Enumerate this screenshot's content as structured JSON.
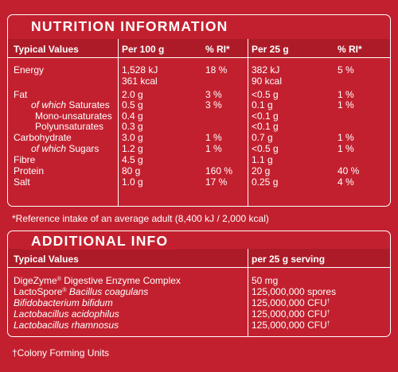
{
  "nutrition": {
    "title": "NUTRITION INFORMATION",
    "headers": [
      "Typical Values",
      "Per 100 g",
      "% RI*",
      "Per 25 g",
      "% RI*"
    ],
    "rows": [
      {
        "label": "Energy",
        "italic_prefix": "",
        "per100": "1,528 kJ",
        "ri100": "18 %",
        "per25": "382 kJ",
        "ri25": "5 %"
      },
      {
        "label": "",
        "italic_prefix": "",
        "per100": "361 kcal",
        "ri100": "",
        "per25": "90 kcal",
        "ri25": ""
      },
      {
        "label": "Fat",
        "italic_prefix": "",
        "per100": "2.0 g",
        "ri100": "3 %",
        "per25": "<0.5 g",
        "ri25": "1 %"
      },
      {
        "label": " Saturates",
        "italic_prefix": "of which",
        "per100": "0.5 g",
        "ri100": "3 %",
        "per25": "0.1 g",
        "ri25": "1 %"
      },
      {
        "label": "Mono-unsaturates",
        "italic_prefix": "",
        "per100": "0.4 g",
        "ri100": "",
        "per25": "<0.1 g",
        "ri25": ""
      },
      {
        "label": "Polyunsaturates",
        "italic_prefix": "",
        "per100": "0.3 g",
        "ri100": "",
        "per25": "<0.1 g",
        "ri25": ""
      },
      {
        "label": "Carbohydrate",
        "italic_prefix": "",
        "per100": "3.0 g",
        "ri100": "1 %",
        "per25": "0.7 g",
        "ri25": "1 %"
      },
      {
        "label": " Sugars",
        "italic_prefix": "of which",
        "per100": "1.2 g",
        "ri100": "1 %",
        "per25": "<0.5 g",
        "ri25": "1 %"
      },
      {
        "label": "Fibre",
        "italic_prefix": "",
        "per100": "4.5 g",
        "ri100": "",
        "per25": "1.1 g",
        "ri25": ""
      },
      {
        "label": "Protein",
        "italic_prefix": "",
        "per100": "80 g",
        "ri100": "160 %",
        "per25": "20 g",
        "ri25": "40 %"
      },
      {
        "label": "Salt",
        "italic_prefix": "",
        "per100": "1.0 g",
        "ri100": "17 %",
        "per25": "0.25 g",
        "ri25": "4 %"
      }
    ],
    "footnote": "*Reference intake of an average adult (8,400 kJ / 2,000 kcal)"
  },
  "additional": {
    "title": "ADDITIONAL INFO",
    "headers": [
      "Typical Values",
      "per 25 g serving"
    ],
    "rows": [
      {
        "name": "DigeZyme",
        "name_sup": "®",
        "desc": " Digestive Enzyme Complex",
        "desc_italic": "",
        "value": "50 mg",
        "value_sup": ""
      },
      {
        "name": "LactoSpore",
        "name_sup": "®",
        "desc": " ",
        "desc_italic": "Bacillus coagulans",
        "value": "125,000,000 spores",
        "value_sup": ""
      },
      {
        "name": "",
        "name_sup": "",
        "desc": "",
        "desc_italic": "Bifidobacterium bifidum",
        "value": "125,000,000 CFU",
        "value_sup": "†"
      },
      {
        "name": "",
        "name_sup": "",
        "desc": "",
        "desc_italic": "Lactobacillus acidophilus",
        "value": "125,000,000 CFU",
        "value_sup": "†"
      },
      {
        "name": "",
        "name_sup": "",
        "desc": "",
        "desc_italic": "Lactobacillus rhamnosus",
        "value": "125,000,000 CFU",
        "value_sup": "†"
      }
    ],
    "footnote": "†Colony Forming Units"
  }
}
